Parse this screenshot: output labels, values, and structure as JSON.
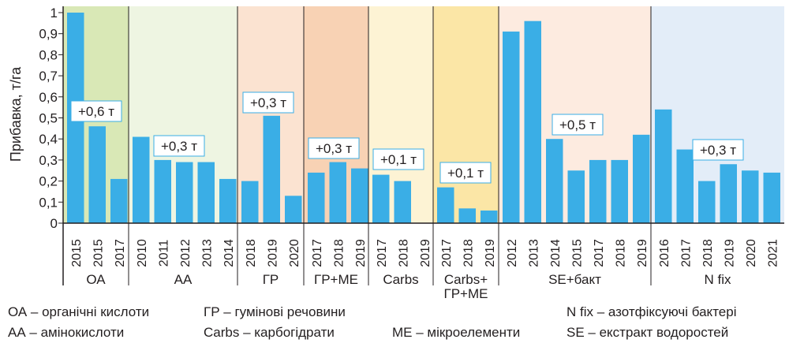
{
  "chart_data": {
    "type": "bar",
    "ylabel": "Прибавка, т/га",
    "ylim": [
      0,
      1
    ],
    "yticks": [
      "0",
      "0,1",
      "0,2",
      "0,3",
      "0,4",
      "0,5",
      "0,6",
      "0,7",
      "0,8",
      "0,9",
      "1"
    ],
    "bar_color": "#3aaee6",
    "groups": [
      {
        "name": "ОА",
        "name2": "",
        "color": "#d9e8b6",
        "annotation": "+0,6 т",
        "categories": [
          "2015",
          "2015",
          "2017"
        ],
        "values": [
          1.0,
          0.46,
          0.21
        ]
      },
      {
        "name": "АА",
        "name2": "",
        "color": "#eef5e2",
        "annotation": "+0,3 т",
        "categories": [
          "2010",
          "2011",
          "2012",
          "2013",
          "2014"
        ],
        "values": [
          0.41,
          0.3,
          0.29,
          0.29,
          0.21
        ]
      },
      {
        "name": "ГР",
        "name2": "",
        "color": "#fbe3d1",
        "annotation": "+0,3 т",
        "categories": [
          "2018",
          "2019",
          "2020"
        ],
        "values": [
          0.2,
          0.51,
          0.13
        ]
      },
      {
        "name": "ГР+МЕ",
        "name2": "",
        "color": "#f8d2b4",
        "annotation": "+0,3 т",
        "categories": [
          "2017",
          "2018",
          "2019"
        ],
        "values": [
          0.24,
          0.29,
          0.26
        ]
      },
      {
        "name": "Carbs",
        "name2": "",
        "color": "#fdf3d4",
        "annotation": "+0,1 т",
        "categories": [
          "2017",
          "2018",
          "2019"
        ],
        "values": [
          0.23,
          0.2,
          0.0
        ]
      },
      {
        "name": "Carbs+",
        "name2": "ГР+МЕ",
        "color": "#fbe6a6",
        "annotation": "+0,1 т",
        "categories": [
          "2017",
          "2018",
          "2019"
        ],
        "values": [
          0.17,
          0.07,
          0.06
        ]
      },
      {
        "name": "SE+бакт",
        "name2": "",
        "color": "#fdebe0",
        "annotation": "+0,5 т",
        "categories": [
          "2012",
          "2013",
          "2014",
          "2015",
          "2017",
          "2018",
          "2019"
        ],
        "values": [
          0.91,
          0.96,
          0.4,
          0.25,
          0.3,
          0.3,
          0.42
        ]
      },
      {
        "name": "N fix",
        "name2": "",
        "color": "#e3edf8",
        "annotation": "+0,3 т",
        "categories": [
          "2016",
          "2017",
          "2018",
          "2019",
          "2020",
          "2021"
        ],
        "values": [
          0.54,
          0.35,
          0.2,
          0.28,
          0.25,
          0.24
        ]
      }
    ]
  },
  "legend": {
    "oa": "ОА – органічні кислоти",
    "aa": "АА – амінокислоти",
    "gr": "ГР – гумінові речовини",
    "carbs": "Carbs – карбогідрати",
    "me": "МЕ – мікроелементи",
    "nfix": "N fix – азотфіксуючі бактері",
    "se": "SE – екстракт водоростей"
  }
}
